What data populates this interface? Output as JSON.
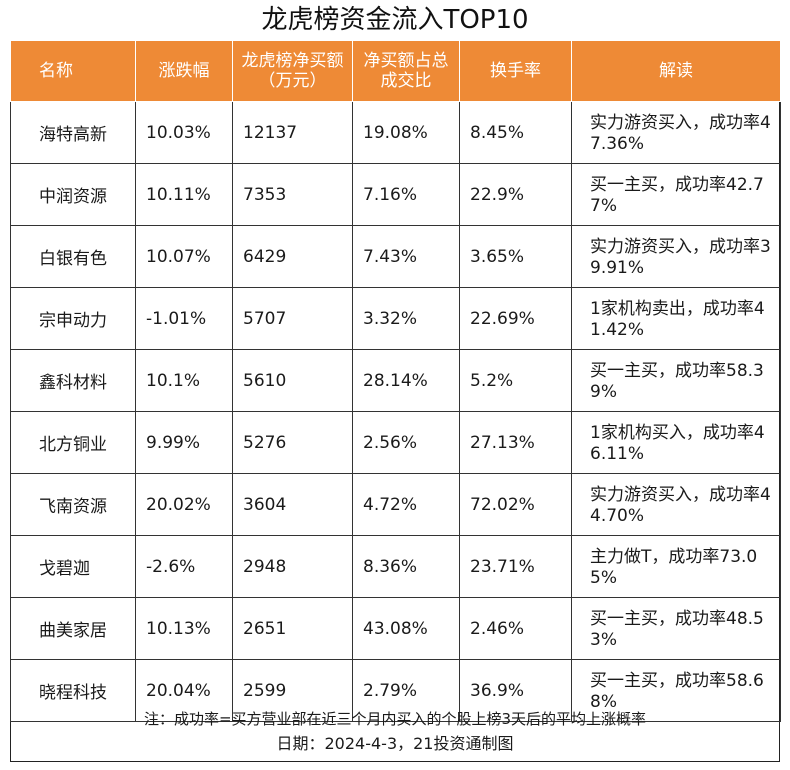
{
  "title": "龙虎榜资金流入TOP10",
  "columns": [
    "名称",
    "涨跌幅",
    "龙虎榜净买额（万元）",
    "净买额占总成交比",
    "换手率",
    "解读"
  ],
  "rows": [
    {
      "name": "海特高新",
      "change": "10.03%",
      "net_buy": "12137",
      "ratio": "19.08%",
      "turnover": "8.45%",
      "note": "实力游资买入，成功率47.36%"
    },
    {
      "name": "中润资源",
      "change": "10.11%",
      "net_buy": "7353",
      "ratio": "7.16%",
      "turnover": "22.9%",
      "note": "买一主买，成功率42.77%"
    },
    {
      "name": "白银有色",
      "change": "10.07%",
      "net_buy": "6429",
      "ratio": "7.43%",
      "turnover": "3.65%",
      "note": "实力游资买入，成功率39.91%"
    },
    {
      "name": "宗申动力",
      "change": "-1.01%",
      "net_buy": "5707",
      "ratio": "3.32%",
      "turnover": "22.69%",
      "note": "1家机构卖出，成功率41.42%"
    },
    {
      "name": "鑫科材料",
      "change": "10.1%",
      "net_buy": "5610",
      "ratio": "28.14%",
      "turnover": "5.2%",
      "note": "买一主买，成功率58.39%"
    },
    {
      "name": "北方铜业",
      "change": "9.99%",
      "net_buy": "5276",
      "ratio": "2.56%",
      "turnover": "27.13%",
      "note": "1家机构买入，成功率46.11%"
    },
    {
      "name": "飞南资源",
      "change": "20.02%",
      "net_buy": "3604",
      "ratio": "4.72%",
      "turnover": "72.02%",
      "note": "实力游资买入，成功率44.70%"
    },
    {
      "name": "戈碧迦",
      "change": "-2.6%",
      "net_buy": "2948",
      "ratio": "8.36%",
      "turnover": "23.71%",
      "note": "主力做T，成功率73.05%"
    },
    {
      "name": "曲美家居",
      "change": "10.13%",
      "net_buy": "2651",
      "ratio": "43.08%",
      "turnover": "2.46%",
      "note": "买一主买，成功率48.53%"
    },
    {
      "name": "晓程科技",
      "change": "20.04%",
      "net_buy": "2599",
      "ratio": "2.79%",
      "turnover": "36.9%",
      "note": "买一主买，成功率58.68%"
    }
  ],
  "footer": {
    "note": "注：成功率=买方营业部在近三个月内买入的个股上榜3天后的平均上涨概率",
    "date": "日期：2024-4-3，21投资通制图"
  },
  "colors": {
    "header_bg": "#ee8a36",
    "header_text": "#ffffff"
  }
}
